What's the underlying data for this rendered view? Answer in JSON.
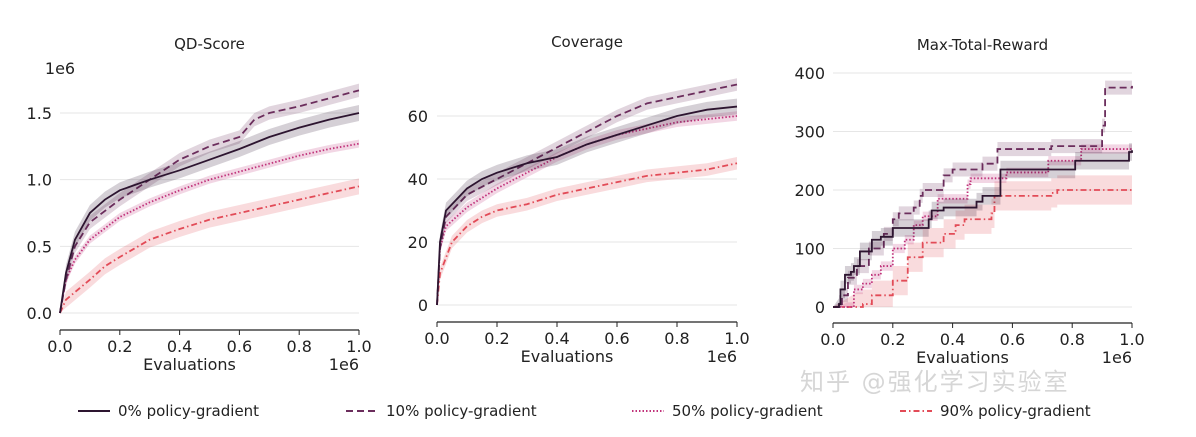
{
  "chart_data": [
    {
      "type": "line",
      "title": "QD-Score",
      "xlabel": "Evaluations",
      "x_scale_label": "1e6",
      "y_scale_label": "1e6",
      "xlim": [
        0,
        1
      ],
      "ylim": [
        0,
        1.7
      ],
      "xticks": [
        0,
        0.2,
        0.4,
        0.6,
        0.8,
        1.0
      ],
      "yticks": [
        0,
        0.5,
        1.0,
        1.5
      ],
      "grid": "horizontal",
      "series": [
        {
          "name": "0% policy-gradient",
          "spread": 0.06,
          "x": [
            0,
            0.02,
            0.05,
            0.1,
            0.15,
            0.2,
            0.3,
            0.4,
            0.5,
            0.6,
            0.7,
            0.8,
            0.9,
            1.0
          ],
          "y": [
            0,
            0.3,
            0.55,
            0.75,
            0.85,
            0.92,
            1.0,
            1.07,
            1.15,
            1.23,
            1.32,
            1.39,
            1.45,
            1.5
          ]
        },
        {
          "name": "10% policy-gradient",
          "spread": 0.05,
          "x": [
            0,
            0.02,
            0.05,
            0.1,
            0.2,
            0.3,
            0.4,
            0.5,
            0.6,
            0.65,
            0.7,
            0.8,
            0.9,
            1.0
          ],
          "y": [
            0,
            0.25,
            0.5,
            0.68,
            0.85,
            1.0,
            1.15,
            1.25,
            1.32,
            1.45,
            1.5,
            1.55,
            1.61,
            1.67
          ]
        },
        {
          "name": "50% policy-gradient",
          "spread": 0.03,
          "x": [
            0,
            0.02,
            0.05,
            0.1,
            0.2,
            0.3,
            0.4,
            0.5,
            0.6,
            0.7,
            0.8,
            0.9,
            1.0
          ],
          "y": [
            0,
            0.25,
            0.4,
            0.55,
            0.72,
            0.83,
            0.92,
            1.0,
            1.06,
            1.12,
            1.18,
            1.23,
            1.27
          ]
        },
        {
          "name": "90% policy-gradient",
          "spread": 0.06,
          "x": [
            0,
            0.02,
            0.1,
            0.15,
            0.2,
            0.3,
            0.4,
            0.5,
            0.6,
            0.7,
            0.8,
            0.9,
            1.0
          ],
          "y": [
            0,
            0.1,
            0.25,
            0.35,
            0.42,
            0.55,
            0.63,
            0.7,
            0.75,
            0.8,
            0.85,
            0.9,
            0.95
          ]
        }
      ]
    },
    {
      "type": "line",
      "title": "Coverage",
      "xlabel": "Evaluations",
      "x_scale_label": "1e6",
      "y_scale_label": "",
      "xlim": [
        0,
        1
      ],
      "ylim": [
        0,
        72
      ],
      "xticks": [
        0,
        0.2,
        0.4,
        0.6,
        0.8,
        1.0
      ],
      "yticks": [
        0,
        20,
        40,
        60
      ],
      "grid": "horizontal",
      "series": [
        {
          "name": "0% policy-gradient",
          "spread": 2.5,
          "x": [
            0,
            0.01,
            0.03,
            0.1,
            0.15,
            0.2,
            0.3,
            0.4,
            0.5,
            0.6,
            0.7,
            0.8,
            0.9,
            1.0
          ],
          "y": [
            0,
            20,
            30,
            37,
            40,
            42,
            45,
            47,
            51,
            54,
            57,
            60,
            62,
            63
          ]
        },
        {
          "name": "10% policy-gradient",
          "spread": 2,
          "x": [
            0,
            0.01,
            0.03,
            0.1,
            0.2,
            0.3,
            0.4,
            0.5,
            0.6,
            0.7,
            0.8,
            0.9,
            1.0
          ],
          "y": [
            0,
            18,
            28,
            35,
            40,
            45,
            50,
            55,
            60,
            64,
            66,
            68,
            70
          ]
        },
        {
          "name": "50% policy-gradient",
          "spread": 1.5,
          "x": [
            0,
            0.01,
            0.03,
            0.1,
            0.2,
            0.3,
            0.4,
            0.5,
            0.6,
            0.7,
            0.8,
            0.9,
            1.0
          ],
          "y": [
            0,
            18,
            25,
            31,
            37,
            42,
            47,
            51,
            54,
            56,
            58,
            59,
            60
          ]
        },
        {
          "name": "90% policy-gradient",
          "spread": 2,
          "x": [
            0,
            0.01,
            0.05,
            0.1,
            0.15,
            0.2,
            0.3,
            0.4,
            0.5,
            0.6,
            0.7,
            0.8,
            0.9,
            1.0
          ],
          "y": [
            0,
            10,
            20,
            25,
            28,
            30,
            32,
            35,
            37,
            39,
            41,
            42,
            43,
            45
          ]
        }
      ]
    },
    {
      "type": "line",
      "step": true,
      "title": "Max-Total-Reward",
      "xlabel": "Evaluations",
      "x_scale_label": "1e6",
      "y_scale_label": "",
      "xlim": [
        0,
        1
      ],
      "ylim": [
        0,
        410
      ],
      "xticks": [
        0,
        0.2,
        0.4,
        0.6,
        0.8,
        1.0
      ],
      "yticks": [
        0,
        100,
        200,
        300,
        400
      ],
      "grid": "horizontal",
      "series": [
        {
          "name": "0% policy-gradient",
          "spread": 15,
          "x": [
            0,
            0.02,
            0.025,
            0.04,
            0.06,
            0.07,
            0.09,
            0.13,
            0.16,
            0.2,
            0.32,
            0.33,
            0.37,
            0.48,
            0.5,
            0.56,
            0.81,
            0.99,
            1.0
          ],
          "y": [
            0,
            5,
            30,
            55,
            60,
            70,
            95,
            115,
            120,
            135,
            150,
            165,
            170,
            180,
            190,
            235,
            250,
            265,
            268
          ]
        },
        {
          "name": "10% policy-gradient",
          "spread": 12,
          "x": [
            0,
            0.03,
            0.05,
            0.08,
            0.12,
            0.17,
            0.2,
            0.22,
            0.27,
            0.29,
            0.3,
            0.37,
            0.4,
            0.5,
            0.55,
            0.73,
            0.9,
            0.91,
            1.0
          ],
          "y": [
            0,
            20,
            50,
            70,
            100,
            125,
            150,
            160,
            170,
            190,
            200,
            225,
            235,
            245,
            270,
            275,
            310,
            375,
            378
          ]
        },
        {
          "name": "50% policy-gradient",
          "spread": 8,
          "x": [
            0,
            0.05,
            0.07,
            0.1,
            0.13,
            0.16,
            0.2,
            0.24,
            0.27,
            0.3,
            0.35,
            0.45,
            0.46,
            0.56,
            0.58,
            0.72,
            0.83,
            1.0
          ],
          "y": [
            0,
            0,
            30,
            40,
            55,
            70,
            100,
            115,
            140,
            155,
            185,
            210,
            220,
            220,
            230,
            250,
            270,
            272
          ]
        },
        {
          "name": "90% policy-gradient",
          "spread": 25,
          "x": [
            0,
            0.08,
            0.1,
            0.13,
            0.2,
            0.25,
            0.3,
            0.37,
            0.41,
            0.44,
            0.53,
            0.54,
            0.63,
            0.73,
            0.75,
            1.0
          ],
          "y": [
            0,
            0,
            5,
            20,
            45,
            85,
            110,
            125,
            140,
            150,
            160,
            190,
            190,
            195,
            200,
            200
          ]
        }
      ]
    }
  ],
  "legend": [
    {
      "label": "0% policy-gradient",
      "color": "#2d1530",
      "dash": ""
    },
    {
      "label": "10% policy-gradient",
      "color": "#6b2d5c",
      "dash": "7,4"
    },
    {
      "label": "50% policy-gradient",
      "color": "#c0327a",
      "dash": "1.5,2"
    },
    {
      "label": "90% policy-gradient",
      "color": "#e24b57",
      "dash": "6,3,1.5,3"
    }
  ],
  "watermark": "知乎 @强化学习实验室"
}
